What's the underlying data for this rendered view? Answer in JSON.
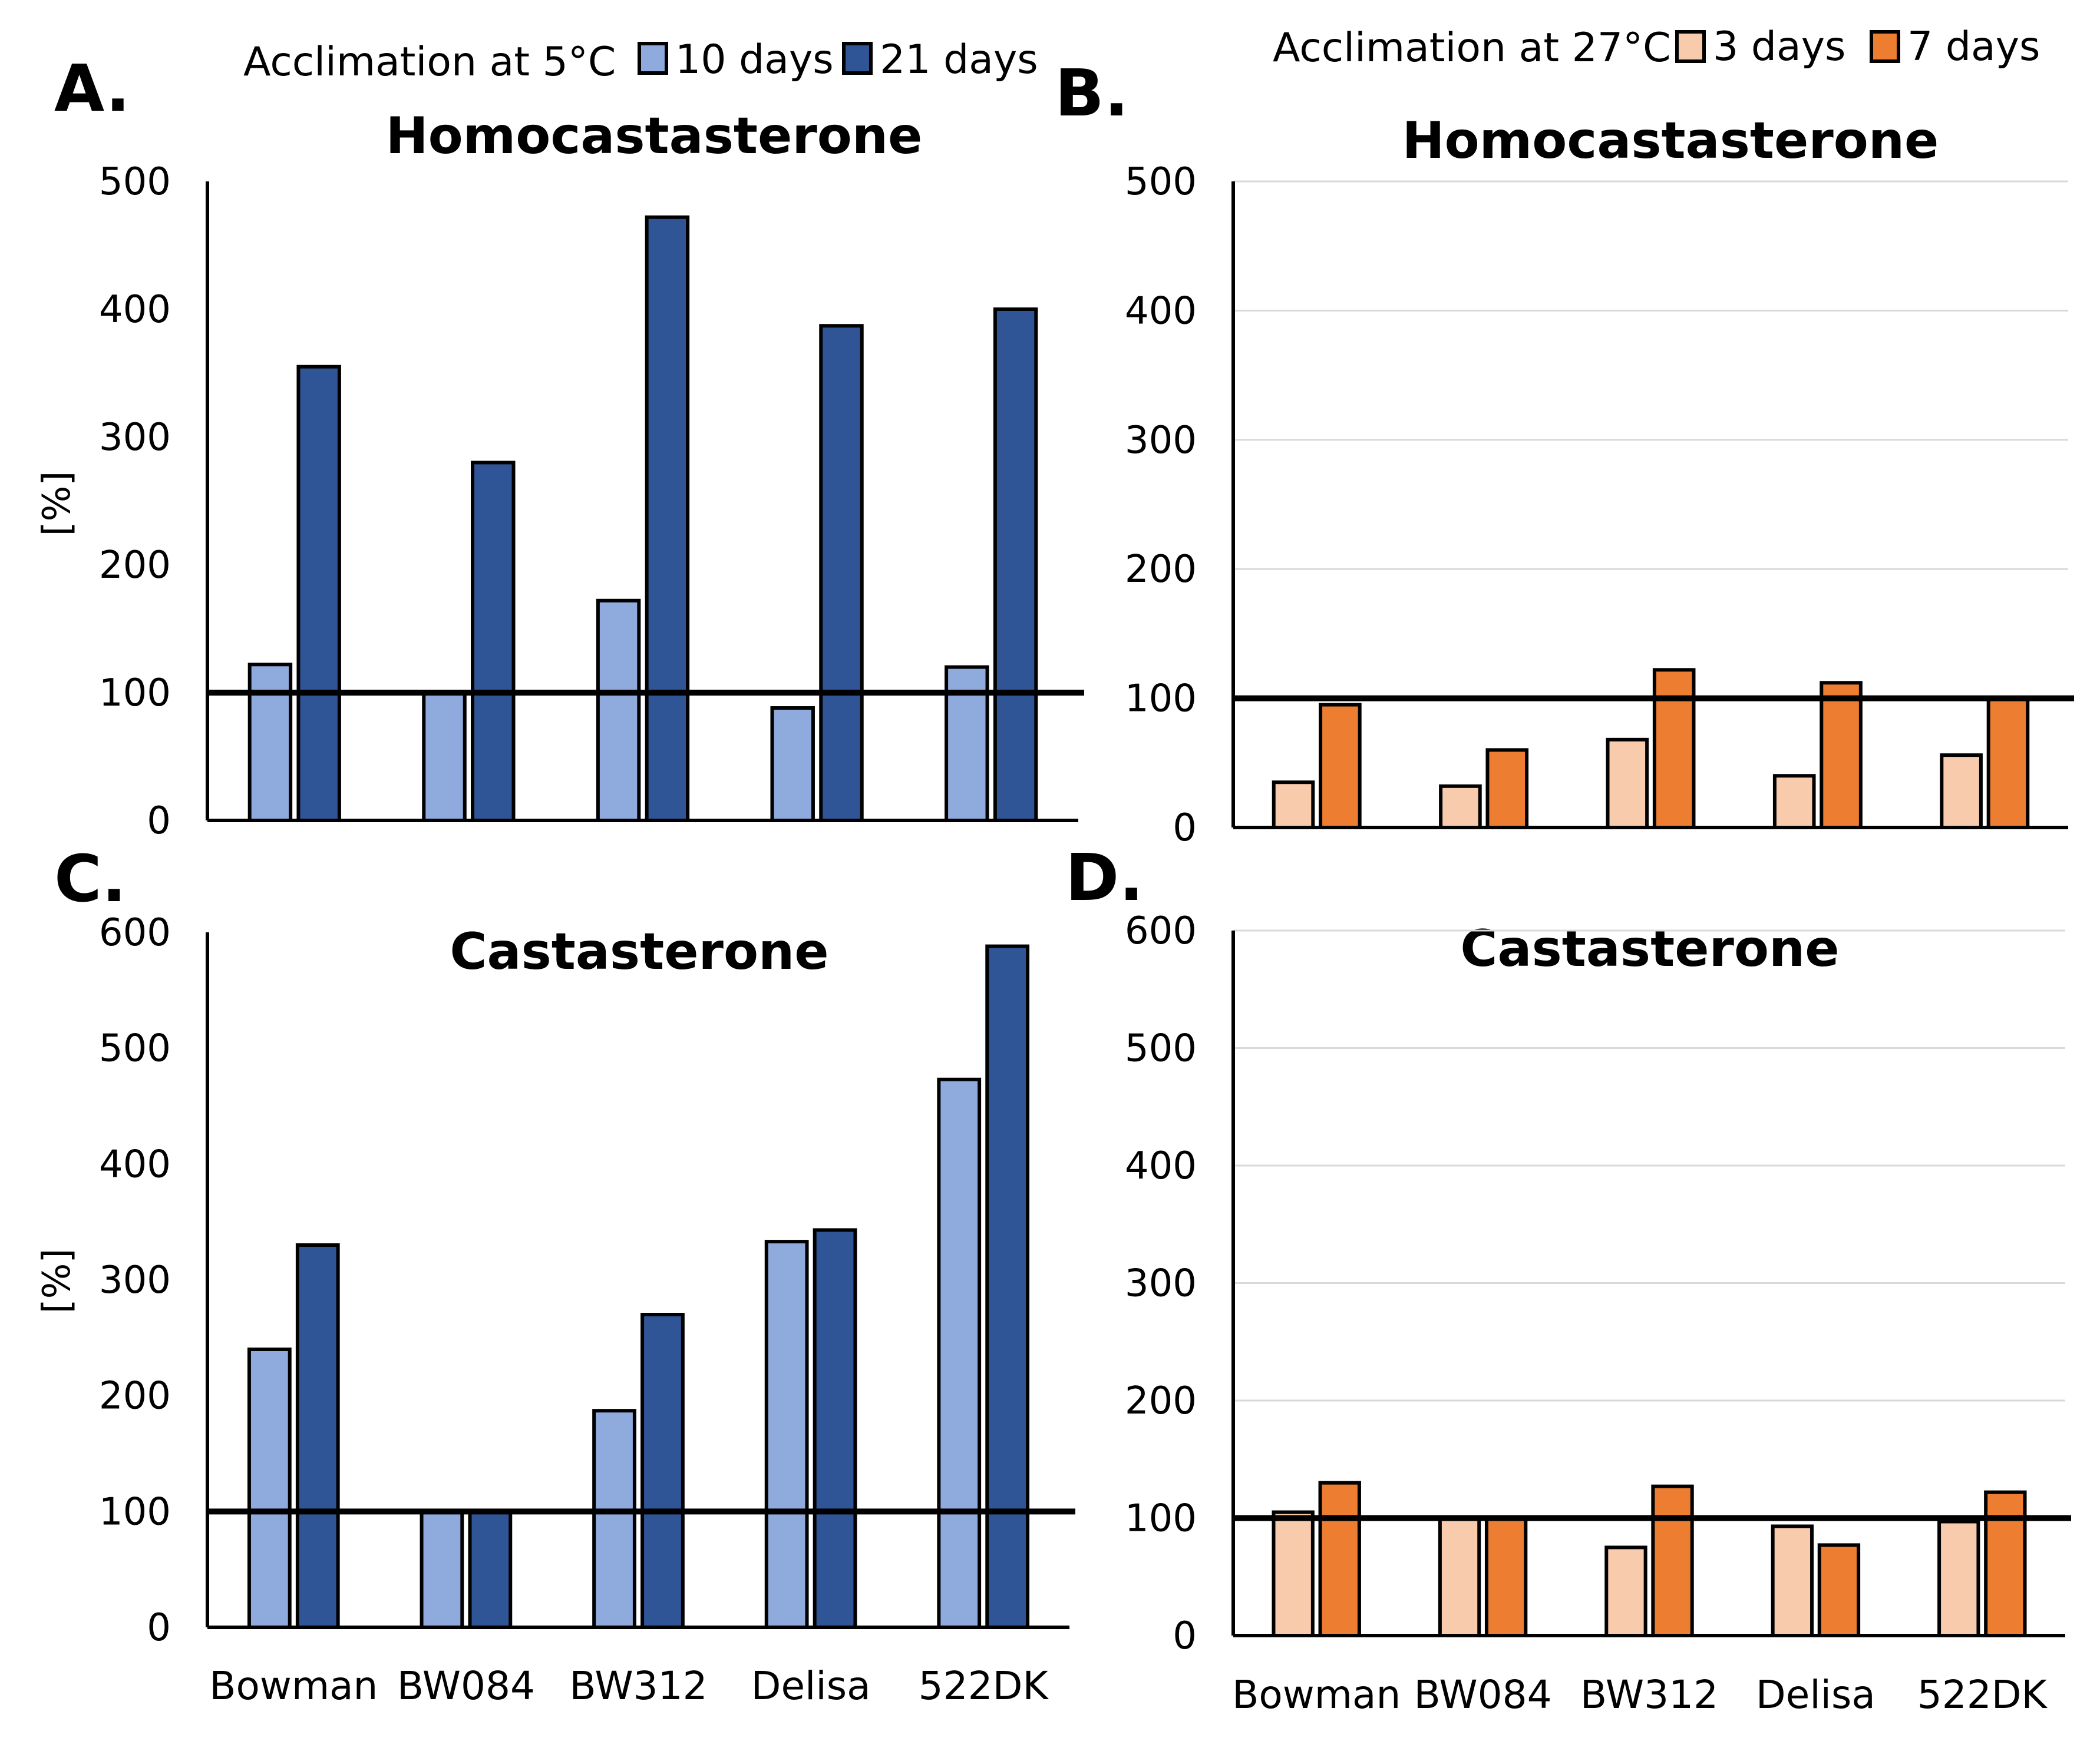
{
  "legends": {
    "cold": {
      "title": "Acclimation at 5°C",
      "entries": [
        {
          "label": "10 days",
          "color": "#8faadc"
        },
        {
          "label": "21 days",
          "color": "#2f5597"
        }
      ]
    },
    "warm": {
      "title": "Acclimation at 27°C",
      "entries": [
        {
          "label": "3 days",
          "color": "#f8cbad"
        },
        {
          "label": "7 days",
          "color": "#ed7d31"
        }
      ]
    }
  },
  "chart_data": [
    {
      "panel": "A.",
      "type": "bar",
      "title": "Homocastasterone",
      "ylabel": "[%]",
      "ylim": [
        0,
        500
      ],
      "yticks": [
        0,
        100,
        200,
        300,
        400,
        500
      ],
      "grid": false,
      "reference_line": 100,
      "categories": [
        "Bowman",
        "BW084",
        "BW312",
        "Delisa",
        "522DK"
      ],
      "show_category_labels": false,
      "series": [
        {
          "name": "10 days",
          "color": "#8faadc",
          "values": [
            122,
            100,
            172,
            88,
            120
          ]
        },
        {
          "name": "21 days",
          "color": "#2f5597",
          "values": [
            355,
            280,
            472,
            387,
            400
          ]
        }
      ]
    },
    {
      "panel": "B.",
      "type": "bar",
      "title": "Homocastasterone",
      "ylabel": "",
      "ylim": [
        0,
        500
      ],
      "yticks": [
        0,
        100,
        200,
        300,
        400,
        500
      ],
      "grid": true,
      "reference_line": 100,
      "categories": [
        "Bowman",
        "BW084",
        "BW312",
        "Delisa",
        "522DK"
      ],
      "show_category_labels": false,
      "series": [
        {
          "name": "3 days",
          "color": "#f8cbad",
          "values": [
            35,
            32,
            68,
            40,
            56
          ]
        },
        {
          "name": "7 days",
          "color": "#ed7d31",
          "values": [
            95,
            60,
            122,
            112,
            100
          ]
        }
      ]
    },
    {
      "panel": "C.",
      "type": "bar",
      "title": "Castasterone",
      "ylabel": "[%]",
      "ylim": [
        0,
        600
      ],
      "yticks": [
        0,
        100,
        200,
        300,
        400,
        500,
        600
      ],
      "grid": false,
      "reference_line": 100,
      "categories": [
        "Bowman",
        "BW084",
        "BW312",
        "Delisa",
        "522DK"
      ],
      "show_category_labels": true,
      "series": [
        {
          "name": "10 days",
          "color": "#8faadc",
          "values": [
            240,
            100,
            187,
            333,
            473
          ]
        },
        {
          "name": "21 days",
          "color": "#2f5597",
          "values": [
            330,
            100,
            270,
            343,
            588
          ]
        }
      ]
    },
    {
      "panel": "D.",
      "type": "bar",
      "title": "Castasterone",
      "ylabel": "",
      "ylim": [
        0,
        600
      ],
      "yticks": [
        0,
        100,
        200,
        300,
        400,
        500,
        600
      ],
      "grid": true,
      "reference_line": 100,
      "categories": [
        "Bowman",
        "BW084",
        "BW312",
        "Delisa",
        "522DK"
      ],
      "show_category_labels": true,
      "series": [
        {
          "name": "3 days",
          "color": "#f8cbad",
          "values": [
            105,
            100,
            75,
            93,
            97
          ]
        },
        {
          "name": "7 days",
          "color": "#ed7d31",
          "values": [
            130,
            100,
            127,
            77,
            122
          ]
        }
      ]
    }
  ]
}
